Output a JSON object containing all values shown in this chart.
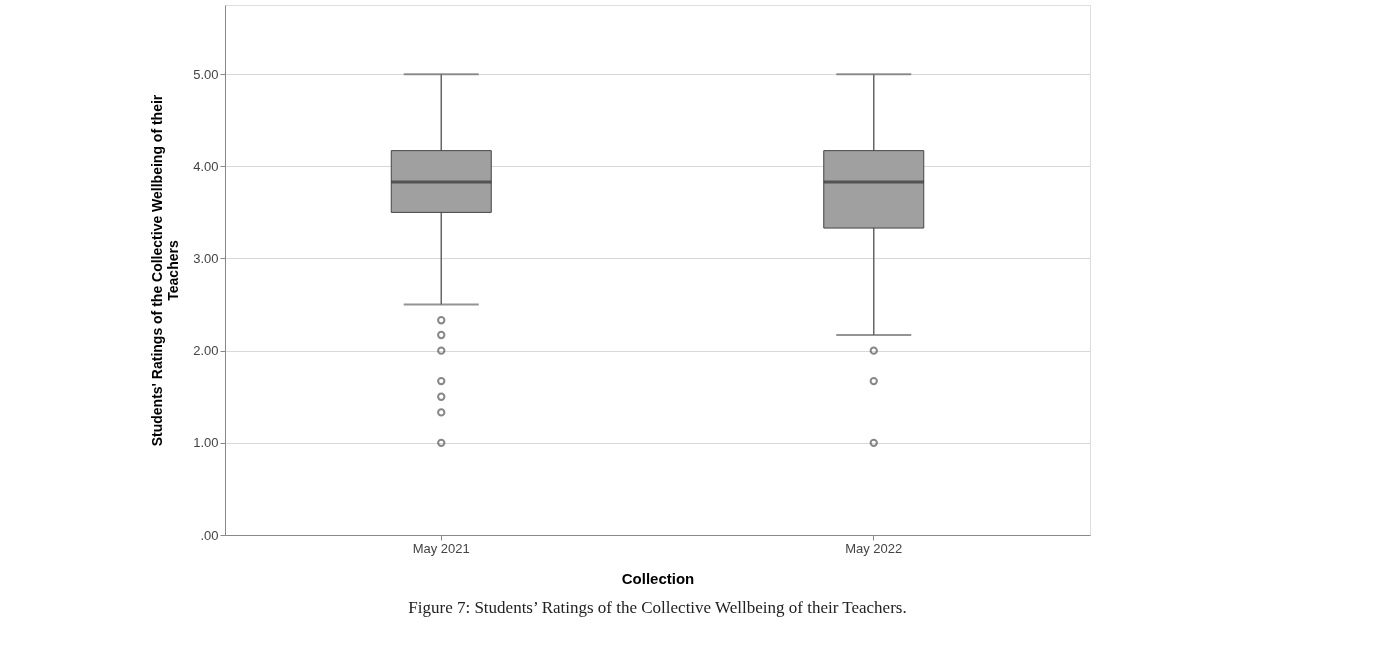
{
  "chart_data": {
    "type": "box",
    "xlabel": "Collection",
    "ylabel": "Students' Ratings of the Collective Wellbeing of their Teachers",
    "categories": [
      "May 2021",
      "May 2022"
    ],
    "boxes": [
      {
        "low": 2.5,
        "q1": 3.5,
        "median": 3.83,
        "q3": 4.17,
        "high": 5.0,
        "outliers": [
          2.33,
          2.17,
          2.0,
          1.67,
          1.5,
          1.33,
          1.0
        ]
      },
      {
        "low": 2.17,
        "q1": 3.33,
        "median": 3.83,
        "q3": 4.17,
        "high": 5.0,
        "outliers": [
          2.0,
          1.67,
          1.0
        ]
      }
    ],
    "color": "#a0a0a0",
    "ylim": [
      0,
      5.75
    ],
    "yticks": [
      {
        "value": 0,
        "label": ".00"
      },
      {
        "value": 1,
        "label": "1.00"
      },
      {
        "value": 2,
        "label": "2.00"
      },
      {
        "value": 3,
        "label": "3.00"
      },
      {
        "value": 4,
        "label": "4.00"
      },
      {
        "value": 5,
        "label": "5.00"
      }
    ],
    "grid": "y",
    "annotations": [
      "Figure 7: Students’ Ratings of the Collective Wellbeing of their Teachers."
    ]
  }
}
